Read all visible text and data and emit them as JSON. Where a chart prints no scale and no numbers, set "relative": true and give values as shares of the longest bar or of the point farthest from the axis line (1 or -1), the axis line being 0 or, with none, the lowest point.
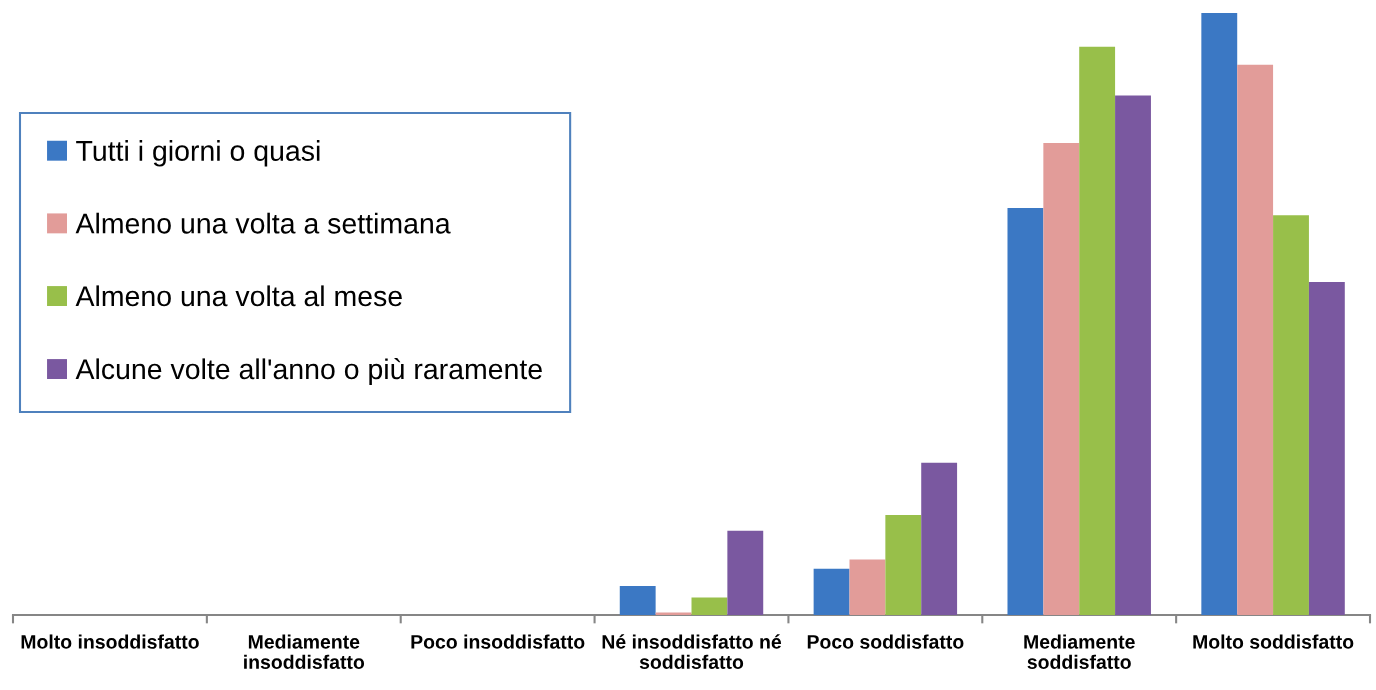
{
  "chart_data": {
    "type": "bar",
    "relative": true,
    "legend": "top left",
    "categories": [
      "Molto insoddisfatto",
      "Mediamente\ninsoddisfatto",
      "Poco insoddisfatto",
      "Né insoddisfatto né\nsoddisfatto",
      "Poco soddisfatto",
      "Mediamente\nsoddisfatto",
      "Molto soddisfatto"
    ],
    "series": [
      {
        "name": "Tutti i giorni o quasi",
        "color": "#3b78c4",
        "values": [
          0,
          0,
          0,
          0.048,
          0.077,
          0.676,
          1
        ]
      },
      {
        "name": "Almeno una volta a settimana",
        "color": "#e29c99",
        "values": [
          0,
          0,
          0,
          0.004,
          0.092,
          0.784,
          0.914
        ]
      },
      {
        "name": "Almeno una volta al mese",
        "color": "#98bf4a",
        "values": [
          0,
          0,
          0,
          0.029,
          0.166,
          0.944,
          0.664
        ]
      },
      {
        "name": "Alcune volte all'anno o più raramente",
        "color": "#7a58a0",
        "values": [
          0,
          0,
          0,
          0.14,
          0.253,
          0.863,
          0.553
        ]
      }
    ]
  }
}
